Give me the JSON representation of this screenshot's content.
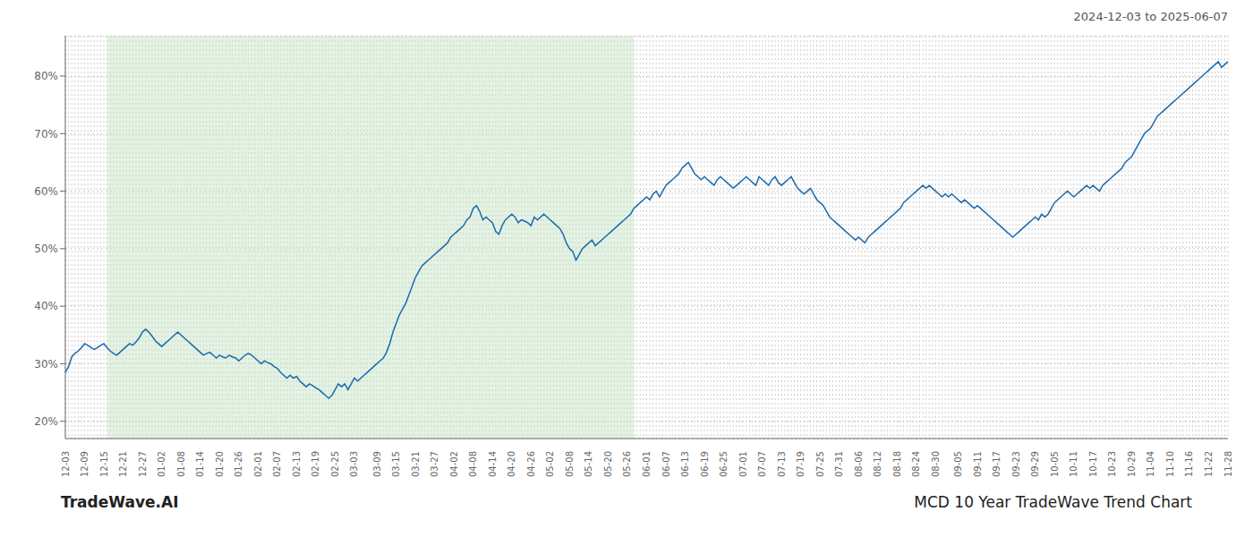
{
  "chart_data": {
    "type": "line",
    "annotations": [
      "2024-12-03 to 2025-06-07",
      "TradeWave.AI",
      "MCD 10 Year TradeWave Trend Chart"
    ],
    "color": "#1a6aad",
    "grid": true,
    "ylim": [
      17,
      87
    ],
    "yticks": [
      {
        "value": 20,
        "label": "20%"
      },
      {
        "value": 30,
        "label": "30%"
      },
      {
        "value": 40,
        "label": "40%"
      },
      {
        "value": 50,
        "label": "50%"
      },
      {
        "value": 60,
        "label": "60%"
      },
      {
        "value": 70,
        "label": "70%"
      },
      {
        "value": 80,
        "label": "80%"
      }
    ],
    "shaded": {
      "from_frac": 0.037,
      "to_frac": 0.49,
      "color": "#c8e6c8"
    },
    "categories": [
      "12-03",
      null,
      null,
      null,
      null,
      null,
      "12-09",
      null,
      null,
      null,
      null,
      null,
      "12-15",
      null,
      null,
      null,
      null,
      null,
      "12-21",
      null,
      null,
      null,
      null,
      null,
      "12-27",
      null,
      null,
      null,
      null,
      null,
      "01-02",
      null,
      null,
      null,
      null,
      null,
      "01-08",
      null,
      null,
      null,
      null,
      null,
      "01-14",
      null,
      null,
      null,
      null,
      null,
      "01-20",
      null,
      null,
      null,
      null,
      null,
      "01-26",
      null,
      null,
      null,
      null,
      null,
      "02-01",
      null,
      null,
      null,
      null,
      null,
      "02-07",
      null,
      null,
      null,
      null,
      null,
      "02-13",
      null,
      null,
      null,
      null,
      null,
      "02-19",
      null,
      null,
      null,
      null,
      null,
      "02-25",
      null,
      null,
      null,
      null,
      null,
      "03-03",
      null,
      null,
      null,
      null,
      null,
      null,
      "03-09",
      null,
      null,
      null,
      null,
      null,
      "03-15",
      null,
      null,
      null,
      null,
      null,
      "03-21",
      null,
      null,
      null,
      null,
      null,
      "03-27",
      null,
      null,
      null,
      null,
      null,
      "04-02",
      null,
      null,
      null,
      null,
      null,
      "04-08",
      null,
      null,
      null,
      null,
      null,
      "04-14",
      null,
      null,
      null,
      null,
      null,
      "04-20",
      null,
      null,
      null,
      null,
      null,
      "04-26",
      null,
      null,
      null,
      null,
      null,
      "05-02",
      null,
      null,
      null,
      null,
      null,
      "05-08",
      null,
      null,
      null,
      null,
      null,
      "05-14",
      null,
      null,
      null,
      null,
      null,
      "05-20",
      null,
      null,
      null,
      null,
      null,
      "05-26",
      null,
      null,
      null,
      null,
      null,
      "06-01",
      null,
      null,
      null,
      null,
      null,
      "06-07",
      null,
      null,
      null,
      null,
      null,
      "06-13",
      null,
      null,
      null,
      null,
      null,
      "06-19",
      null,
      null,
      null,
      null,
      null,
      "06-25",
      null,
      null,
      null,
      null,
      null,
      "07-01",
      null,
      null,
      null,
      null,
      null,
      "07-07",
      null,
      null,
      null,
      null,
      null,
      "07-13",
      null,
      null,
      null,
      null,
      null,
      "07-19",
      null,
      null,
      null,
      null,
      null,
      "07-25",
      null,
      null,
      null,
      null,
      null,
      "07-31",
      null,
      null,
      null,
      null,
      null,
      "08-06",
      null,
      null,
      null,
      null,
      null,
      "08-12",
      null,
      null,
      null,
      null,
      null,
      "08-18",
      null,
      null,
      null,
      null,
      null,
      "08-24",
      null,
      null,
      null,
      null,
      null,
      "08-30",
      null,
      null,
      null,
      null,
      null,
      null,
      "09-05",
      null,
      null,
      null,
      null,
      null,
      "09-11",
      null,
      null,
      null,
      null,
      null,
      "09-17",
      null,
      null,
      null,
      null,
      null,
      "09-23",
      null,
      null,
      null,
      null,
      null,
      "09-29",
      null,
      null,
      null,
      null,
      null,
      "10-05",
      null,
      null,
      null,
      null,
      null,
      "10-11",
      null,
      null,
      null,
      null,
      null,
      "10-17",
      null,
      null,
      null,
      null,
      null,
      "10-23",
      null,
      null,
      null,
      null,
      null,
      "10-29",
      null,
      null,
      null,
      null,
      null,
      "11-04",
      null,
      null,
      null,
      null,
      null,
      "11-10",
      null,
      null,
      null,
      null,
      null,
      "11-16",
      null,
      null,
      null,
      null,
      null,
      "11-22",
      null,
      null,
      null,
      null,
      null,
      "11-28"
    ],
    "values": [
      28.5,
      29.5,
      31.2,
      31.8,
      32.2,
      32.8,
      33.5,
      33.2,
      32.8,
      32.5,
      32.8,
      33.2,
      33.5,
      32.8,
      32.2,
      31.8,
      31.5,
      32.0,
      32.5,
      33.0,
      33.5,
      33.2,
      33.8,
      34.5,
      35.5,
      36.0,
      35.5,
      34.8,
      34.0,
      33.5,
      33.0,
      33.5,
      34.0,
      34.5,
      35.0,
      35.5,
      35.0,
      34.5,
      34.0,
      33.5,
      33.0,
      32.5,
      32.0,
      31.5,
      31.8,
      32.0,
      31.5,
      31.0,
      31.5,
      31.2,
      31.0,
      31.5,
      31.2,
      31.0,
      30.5,
      31.0,
      31.5,
      31.8,
      31.5,
      31.0,
      30.5,
      30.0,
      30.5,
      30.2,
      30.0,
      29.5,
      29.2,
      28.5,
      28.0,
      27.5,
      28.0,
      27.5,
      27.8,
      27.0,
      26.5,
      26.0,
      26.5,
      26.2,
      25.8,
      25.5,
      25.0,
      24.5,
      24.0,
      24.5,
      25.5,
      26.5,
      26.0,
      26.5,
      25.5,
      26.5,
      27.5,
      27.0,
      27.5,
      28.0,
      28.5,
      29.0,
      29.5,
      30.0,
      30.5,
      31.0,
      32.0,
      33.5,
      35.5,
      37.0,
      38.5,
      39.5,
      40.5,
      42.0,
      43.5,
      45.0,
      46.0,
      47.0,
      47.5,
      48.0,
      48.5,
      49.0,
      49.5,
      50.0,
      50.5,
      51.0,
      52.0,
      52.5,
      53.0,
      53.5,
      54.0,
      55.0,
      55.5,
      57.0,
      57.5,
      56.5,
      55.0,
      55.5,
      55.0,
      54.5,
      53.0,
      52.5,
      54.0,
      55.0,
      55.5,
      56.0,
      55.5,
      54.5,
      55.0,
      54.8,
      54.5,
      54.0,
      55.5,
      55.0,
      55.5,
      56.0,
      55.5,
      55.0,
      54.5,
      54.0,
      53.5,
      52.5,
      51.0,
      50.0,
      49.5,
      48.0,
      49.0,
      50.0,
      50.5,
      51.0,
      51.5,
      50.5,
      51.0,
      51.5,
      52.0,
      52.5,
      53.0,
      53.5,
      54.0,
      54.5,
      55.0,
      55.5,
      56.0,
      57.0,
      57.5,
      58.0,
      58.5,
      59.0,
      58.5,
      59.5,
      60.0,
      59.0,
      60.0,
      61.0,
      61.5,
      62.0,
      62.5,
      63.0,
      64.0,
      64.5,
      65.0,
      64.0,
      63.0,
      62.5,
      62.0,
      62.5,
      62.0,
      61.5,
      61.0,
      62.0,
      62.5,
      62.0,
      61.5,
      61.0,
      60.5,
      61.0,
      61.5,
      62.0,
      62.5,
      62.0,
      61.5,
      61.0,
      62.5,
      62.0,
      61.5,
      61.0,
      62.0,
      62.5,
      61.5,
      61.0,
      61.5,
      62.0,
      62.5,
      61.5,
      60.5,
      60.0,
      59.5,
      60.0,
      60.5,
      59.5,
      58.5,
      58.0,
      57.5,
      56.5,
      55.5,
      55.0,
      54.5,
      54.0,
      53.5,
      53.0,
      52.5,
      52.0,
      51.5,
      52.0,
      51.5,
      51.0,
      52.0,
      52.5,
      53.0,
      53.5,
      54.0,
      54.5,
      55.0,
      55.5,
      56.0,
      56.5,
      57.0,
      58.0,
      58.5,
      59.0,
      59.5,
      60.0,
      60.5,
      61.0,
      60.5,
      61.0,
      60.5,
      60.0,
      59.5,
      59.0,
      59.5,
      59.0,
      59.5,
      59.0,
      58.5,
      58.0,
      58.5,
      58.0,
      57.5,
      57.0,
      57.5,
      57.0,
      56.5,
      56.0,
      55.5,
      55.0,
      54.5,
      54.0,
      53.5,
      53.0,
      52.5,
      52.0,
      52.5,
      53.0,
      53.5,
      54.0,
      54.5,
      55.0,
      55.5,
      55.0,
      56.0,
      55.5,
      56.0,
      57.0,
      58.0,
      58.5,
      59.0,
      59.5,
      60.0,
      59.5,
      59.0,
      59.5,
      60.0,
      60.5,
      61.0,
      60.5,
      61.0,
      60.5,
      60.0,
      61.0,
      61.5,
      62.0,
      62.5,
      63.0,
      63.5,
      64.0,
      65.0,
      65.5,
      66.0,
      67.0,
      68.0,
      69.0,
      70.0,
      70.5,
      71.0,
      72.0,
      73.0,
      73.5,
      74.0,
      74.5,
      75.0,
      75.5,
      76.0,
      76.5,
      77.0,
      77.5,
      78.0,
      78.5,
      79.0,
      79.5,
      80.0,
      80.5,
      81.0,
      81.5,
      82.0,
      82.5,
      81.5,
      82.0,
      82.5
    ]
  }
}
